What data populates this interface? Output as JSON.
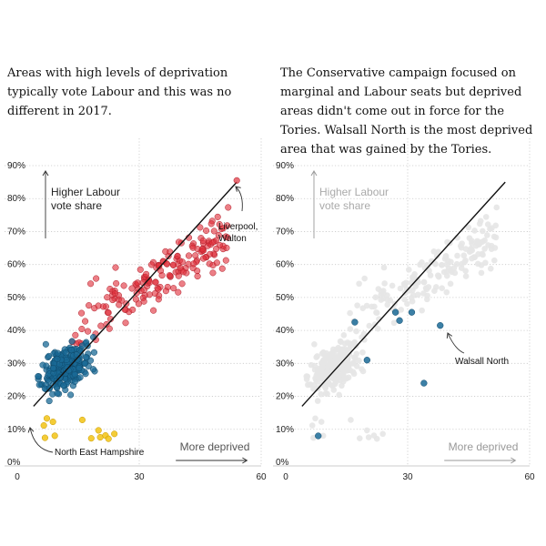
{
  "captions": {
    "left": "Areas with high levels of deprivation typically vote Labour and this was no different in 2017.",
    "right": "The Conservative campaign focused on marginal and Labour seats but deprived areas didn't come out in force for the Tories. Walsall North is the most deprived area that was gained by the Tories."
  },
  "colors": {
    "labour": "#e0303c",
    "conservative": "#1a6a96",
    "libdem": "#f2c314",
    "background_points": "#e6e6e6",
    "trend": "#111111"
  },
  "chart_data": [
    {
      "type": "scatter",
      "title": "",
      "xlabel": "",
      "ylabel": "",
      "xlim": [
        0,
        60
      ],
      "ylim": [
        0,
        90
      ],
      "x_ticks": [
        "0",
        "30",
        "60"
      ],
      "y_ticks": [
        "0%",
        "10%",
        "20%",
        "30%",
        "40%",
        "50%",
        "60%",
        "70%",
        "80%",
        "90%"
      ],
      "grid": "vertical dotted lines at x=30 and x=60; horizontal dotted lines every 10%",
      "annotations": {
        "up_arrow": "Higher Labour vote share",
        "right_arrow": "More deprived",
        "point_high": "Liverpool, Walton",
        "point_low": "North East Hampshire"
      },
      "highlight_points": {
        "liverpool_walton": {
          "x": 54,
          "y": 85.5
        },
        "north_east_hampshire": {
          "x": 4,
          "y": 17
        }
      },
      "trendline": {
        "x": [
          4,
          54
        ],
        "y": [
          17,
          85
        ]
      },
      "series": [
        {
          "color_key": "labour",
          "n": 180,
          "x_range": [
            11,
            54
          ],
          "y_range": [
            35,
            86
          ]
        },
        {
          "color_key": "conservative",
          "n": 220,
          "x_range": [
            2,
            35
          ],
          "y_range": [
            9,
            50
          ]
        },
        {
          "color_key": "libdem",
          "n": 12,
          "x_range": [
            6,
            25
          ],
          "y_range": [
            7,
            14
          ]
        }
      ]
    },
    {
      "type": "scatter",
      "title": "",
      "xlabel": "",
      "ylabel": "",
      "xlim": [
        0,
        60
      ],
      "ylim": [
        0,
        90
      ],
      "x_ticks": [
        "0",
        "30",
        "60"
      ],
      "y_ticks": [
        "0%",
        "10%",
        "20%",
        "30%",
        "40%",
        "50%",
        "60%",
        "70%",
        "80%",
        "90%"
      ],
      "grid": "vertical dotted lines at x=30 and x=60; horizontal dotted lines every 10%",
      "annotations": {
        "up_arrow": "Higher Labour vote share",
        "right_arrow": "More deprived",
        "point_label": "Walsall North"
      },
      "trendline": {
        "x": [
          4,
          54
        ],
        "y": [
          17,
          85
        ]
      },
      "background_points": {
        "n": 380,
        "note": "all other seats shown in light grey"
      },
      "highlighted_gains": [
        {
          "x": 8,
          "y": 8
        },
        {
          "x": 17,
          "y": 42.5
        },
        {
          "x": 20,
          "y": 31
        },
        {
          "x": 27,
          "y": 45.5
        },
        {
          "x": 28,
          "y": 43
        },
        {
          "x": 31,
          "y": 45.5
        },
        {
          "x": 34,
          "y": 24
        },
        {
          "x": 38,
          "y": 41.5
        }
      ],
      "walsall_north": {
        "x": 38,
        "y": 41.5
      }
    }
  ]
}
